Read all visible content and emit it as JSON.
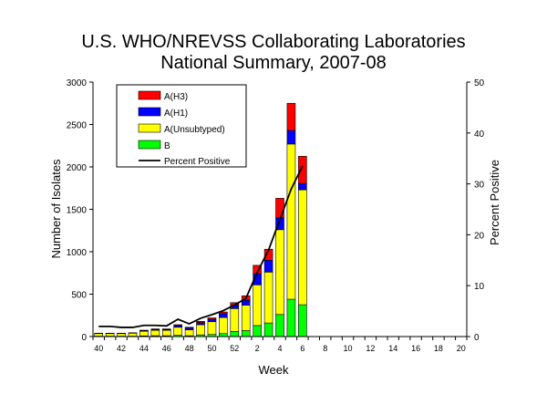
{
  "chart_data": {
    "type": "bar",
    "title": [
      "U.S. WHO/NREVSS Collaborating Laboratories",
      "National Summary, 2007-08"
    ],
    "xlabel": "Week",
    "ylabel": "Number of Isolates",
    "y2label": "Percent Positive",
    "ylim": [
      0,
      3000
    ],
    "y2lim": [
      0,
      50
    ],
    "yticks": [
      0,
      500,
      1000,
      1500,
      2000,
      2500,
      3000
    ],
    "y2ticks": [
      0,
      10,
      20,
      30,
      40,
      50
    ],
    "weeks": [
      40,
      41,
      42,
      43,
      44,
      45,
      46,
      47,
      48,
      49,
      50,
      51,
      52,
      1,
      2,
      3,
      4,
      5,
      6,
      7,
      8,
      9,
      10,
      11,
      12,
      13,
      14,
      15,
      16,
      17,
      18,
      19,
      20
    ],
    "xtick_labels": [
      "40",
      "42",
      "44",
      "46",
      "48",
      "50",
      "52",
      "2",
      "4",
      "6",
      "8",
      "10",
      "12",
      "14",
      "16",
      "18",
      "20"
    ],
    "stacked": true,
    "legend_position": "top-left",
    "series": [
      {
        "name": "B",
        "color": "#00ff00",
        "values": [
          5,
          5,
          5,
          5,
          8,
          10,
          10,
          15,
          10,
          20,
          25,
          35,
          60,
          70,
          130,
          160,
          260,
          440,
          375
        ]
      },
      {
        "name": "A(Unsubtyped)",
        "color": "#ffff00",
        "values": [
          30,
          30,
          30,
          35,
          55,
          65,
          65,
          95,
          70,
          120,
          150,
          190,
          270,
          300,
          480,
          600,
          1000,
          1830,
          1355
        ]
      },
      {
        "name": "A(H1)",
        "color": "#0000ff",
        "values": [
          3,
          3,
          3,
          3,
          7,
          8,
          8,
          20,
          20,
          25,
          30,
          45,
          40,
          60,
          130,
          140,
          140,
          160,
          75
        ]
      },
      {
        "name": "A(H3)",
        "color": "#ff0000",
        "values": [
          2,
          2,
          2,
          2,
          5,
          7,
          7,
          10,
          10,
          15,
          15,
          20,
          30,
          50,
          100,
          130,
          230,
          320,
          320
        ]
      }
    ],
    "line": {
      "name": "Percent Positive",
      "color": "#000000",
      "axis": "right",
      "values": [
        2,
        2,
        1.8,
        1.8,
        2.2,
        2.2,
        2.1,
        3.4,
        2.5,
        3.6,
        4.3,
        5.1,
        6.2,
        7.5,
        12.6,
        17,
        23,
        29,
        33.5
      ]
    }
  }
}
